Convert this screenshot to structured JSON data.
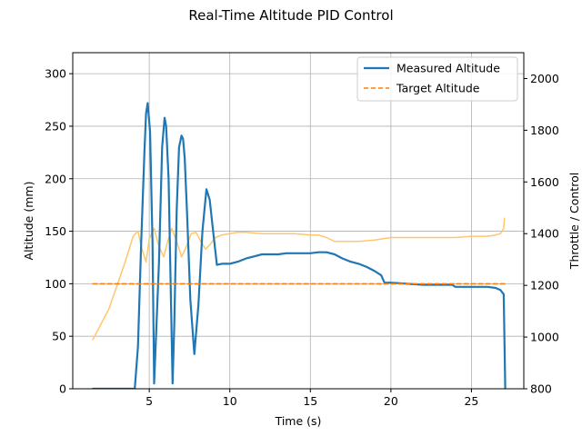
{
  "chart_data": {
    "type": "line",
    "title": "Real-Time Altitude PID Control",
    "xlabel": "Time (s)",
    "ylabel": "Altitude (mm)",
    "y2label": "Throttle / Control",
    "xlim": [
      0.25,
      28.25
    ],
    "ylim": [
      0,
      320
    ],
    "y2lim": [
      800,
      2100
    ],
    "x_ticks": [
      5,
      10,
      15,
      20,
      25
    ],
    "y_ticks": [
      0,
      50,
      100,
      150,
      200,
      250,
      300
    ],
    "y2_ticks": [
      800,
      1000,
      1200,
      1400,
      1600,
      1800,
      2000
    ],
    "grid": true,
    "legend_position": "top-right",
    "series": [
      {
        "name": "Measured Altitude",
        "axis": "left",
        "color": "#1f77b4",
        "style": "solid",
        "x": [
          1.5,
          4.1,
          4.3,
          4.5,
          4.7,
          4.8,
          4.9,
          5.05,
          5.2,
          5.3,
          5.6,
          5.8,
          5.95,
          6.05,
          6.2,
          6.35,
          6.45,
          6.55,
          6.7,
          6.85,
          7.0,
          7.1,
          7.2,
          7.35,
          7.55,
          7.8,
          8.05,
          8.3,
          8.55,
          8.75,
          9.0,
          9.2,
          9.5,
          10.0,
          10.5,
          11.0,
          11.5,
          12.0,
          12.5,
          13.0,
          13.5,
          14.0,
          14.5,
          15.0,
          15.5,
          16.0,
          16.5,
          17.0,
          17.5,
          18.0,
          18.5,
          19.0,
          19.4,
          19.6,
          20.0,
          21.0,
          22.0,
          23.0,
          23.8,
          24.0,
          25.0,
          26.0,
          26.5,
          26.8,
          27.0,
          27.1
        ],
        "y": [
          0,
          0,
          40,
          140,
          225,
          262,
          272,
          245,
          140,
          5,
          120,
          230,
          258,
          250,
          200,
          80,
          5,
          60,
          170,
          230,
          241,
          238,
          220,
          165,
          85,
          33,
          80,
          150,
          190,
          180,
          145,
          118,
          119,
          119,
          121,
          124,
          126,
          128,
          128,
          128,
          129,
          129,
          129,
          129,
          130,
          130,
          128,
          124,
          121,
          119,
          116,
          112,
          108,
          101,
          101,
          100,
          99,
          99,
          99,
          97,
          97,
          97,
          96,
          94,
          90,
          0
        ]
      },
      {
        "name": "Target Altitude",
        "axis": "left",
        "color": "#ff7f0e",
        "style": "dashed",
        "x": [
          1.5,
          27.1
        ],
        "y": [
          100,
          100
        ]
      },
      {
        "axis": "right",
        "color": "#ffc66b",
        "style": "solid",
        "x": [
          1.5,
          2.5,
          3.0,
          3.5,
          4.0,
          4.3,
          4.5,
          4.8,
          5.0,
          5.3,
          5.6,
          5.9,
          6.1,
          6.4,
          6.7,
          7.0,
          7.3,
          7.6,
          7.9,
          8.2,
          8.5,
          8.8,
          9.1,
          9.5,
          10.0,
          10.5,
          11.0,
          12.0,
          13.0,
          14.0,
          15.0,
          15.5,
          16.0,
          16.5,
          17.0,
          18.0,
          19.0,
          19.5,
          20.0,
          21.0,
          22.0,
          23.0,
          24.0,
          25.0,
          26.0,
          26.5,
          26.8,
          27.0,
          27.05
        ],
        "y": [
          990,
          1110,
          1200,
          1290,
          1390,
          1410,
          1350,
          1290,
          1380,
          1420,
          1350,
          1310,
          1360,
          1420,
          1370,
          1310,
          1350,
          1400,
          1405,
          1370,
          1340,
          1360,
          1385,
          1395,
          1400,
          1405,
          1405,
          1400,
          1400,
          1400,
          1395,
          1395,
          1385,
          1370,
          1370,
          1370,
          1375,
          1380,
          1385,
          1385,
          1385,
          1385,
          1385,
          1390,
          1390,
          1395,
          1400,
          1420,
          1460
        ]
      }
    ]
  }
}
